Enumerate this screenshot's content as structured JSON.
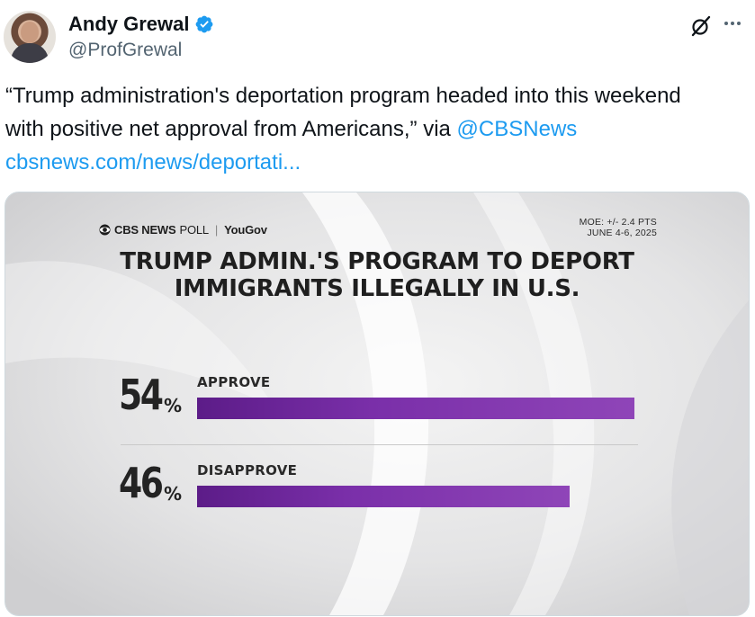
{
  "author": {
    "display_name": "Andy Grewal",
    "handle": "@ProfGrewal",
    "verified": true
  },
  "icons": {
    "avatar": "avatar-photo",
    "verified": "verified-badge-icon",
    "grok": "grok-icon",
    "more": "more-icon"
  },
  "colors": {
    "link": "#1d9bf0",
    "verified": "#1d9bf0",
    "bar": "#8a40b5"
  },
  "tweet": {
    "line1": "“Trump administration's deportation program headed into this weekend",
    "line2_text": "with positive net approval from Americans,” via ",
    "mention": "@CBSNews",
    "link": "cbsnews.com/news/deportati..."
  },
  "graphic": {
    "brand": "CBS NEWS",
    "poll_word": "POLL",
    "partner": "YouGov",
    "moe": "MOE: +/- 2.4 PTS",
    "dates": "JUNE 4-6, 2025",
    "title_line1": "TRUMP ADMIN.'S PROGRAM TO DEPORT",
    "title_line2": "IMMIGRANTS ILLEGALLY IN U.S."
  },
  "chart_data": {
    "type": "bar",
    "categories": [
      "APPROVE",
      "DISAPPROVE"
    ],
    "values": [
      54,
      46
    ],
    "value_labels": [
      "54",
      "46"
    ],
    "unit": "%",
    "title": "TRUMP ADMIN.'S PROGRAM TO DEPORT IMMIGRANTS ILLEGALLY IN U.S.",
    "xlabel": "",
    "ylabel": "",
    "orientation": "horizontal",
    "grid": false
  }
}
